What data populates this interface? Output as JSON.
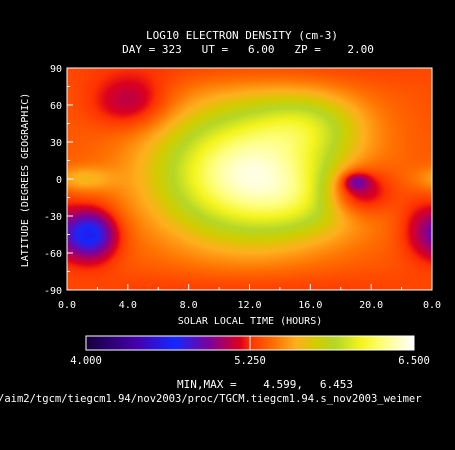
{
  "chart_data": {
    "type": "heatmap",
    "title": "LOG10 ELECTRON DENSITY (cm-3)",
    "subtitle": "DAY = 323   UT =   6.00   ZP =    2.00",
    "xlabel": "SOLAR LOCAL TIME (HOURS)",
    "ylabel": "LATITUDE (DEGREES GEOGRAPHIC)",
    "x_ticks": [
      "0.0",
      "4.0",
      "8.0",
      "12.0",
      "16.0",
      "20.0",
      "0.0"
    ],
    "y_ticks": [
      "-90",
      "-60",
      "-30",
      "0",
      "30",
      "60",
      "90"
    ],
    "xlim": [
      0,
      24
    ],
    "ylim": [
      -90,
      90
    ],
    "colorbar": {
      "min_label": "4.000",
      "mid_label": "5.250",
      "max_label": "6.500",
      "range": [
        4.0,
        6.5
      ]
    },
    "minmax_label": "MIN,MAX =",
    "min_value": "4.599,",
    "max_value": "6.453",
    "footer_path": "/aim2/tgcm/tiegcm1.94/nov2003/proc/TGCM.tiegcm1.94.s_nov2003_weimer",
    "field": {
      "base": 5.35,
      "features": [
        {
          "lt": 11.8,
          "lat": 5,
          "slt": 4.2,
          "slat": 38,
          "amp": 1.05
        },
        {
          "lt": 16.0,
          "lat": 45,
          "slt": 2.5,
          "slat": 18,
          "amp": 0.35
        },
        {
          "lt": 16.5,
          "lat": -18,
          "slt": 3.0,
          "slat": 20,
          "amp": 0.25
        },
        {
          "lt": 19.0,
          "lat": -10,
          "slt": 1.6,
          "slat": 14,
          "amp": -0.55
        },
        {
          "lt": 19.0,
          "lat": -2,
          "slt": 0.6,
          "slat": 5,
          "amp": -0.35
        },
        {
          "lt": 1.5,
          "lat": -45,
          "slt": 1.2,
          "slat": 14,
          "amp": -0.75
        },
        {
          "lt": 4.2,
          "lat": 62,
          "slt": 1.8,
          "slat": 15,
          "amp": -0.3
        },
        {
          "lt": 1.0,
          "lat": 0,
          "slt": 1.4,
          "slat": 7,
          "amp": 0.25
        },
        {
          "lt": 23.2,
          "lat": -40,
          "slt": 1.0,
          "slat": 18,
          "amp": -0.2
        },
        {
          "lt": 12.0,
          "lat": 90,
          "slt": 8.0,
          "slat": 12,
          "amp": -0.1
        },
        {
          "lt": 12.0,
          "lat": -90,
          "slt": 8.0,
          "slat": 12,
          "amp": -0.1
        }
      ]
    }
  }
}
